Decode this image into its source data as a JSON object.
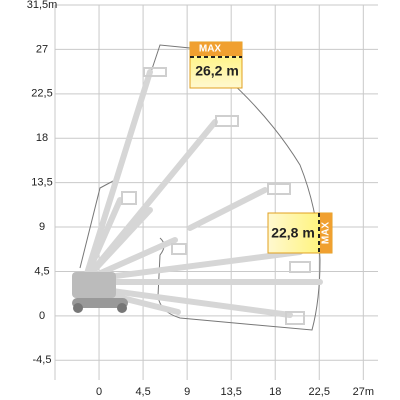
{
  "chart_data": {
    "type": "envelope",
    "xlim": [
      -4.5,
      28.5
    ],
    "ylim": [
      -6.5,
      31.5
    ],
    "xticks": [
      0,
      {
        "value": 4.5,
        "label": "4,5"
      },
      9,
      {
        "value": 13.5,
        "label": "13,5"
      },
      18,
      {
        "value": 22.5,
        "label": "22,5"
      },
      {
        "value": 27,
        "label": "27m"
      }
    ],
    "yticks": [
      {
        "value": -4.5,
        "label": "-4,5"
      },
      0,
      {
        "value": 4.5,
        "label": "4,5"
      },
      9,
      {
        "value": 13.5,
        "label": "13,5"
      },
      18,
      {
        "value": 22.5,
        "label": "22,5"
      },
      27,
      {
        "value": 31.5,
        "label": "31,5m"
      }
    ],
    "grid": true,
    "annotations": [
      {
        "tag": "MAX",
        "text": "26,2 m"
      },
      {
        "tag": "MAX",
        "text": "22,8 m"
      }
    ]
  }
}
